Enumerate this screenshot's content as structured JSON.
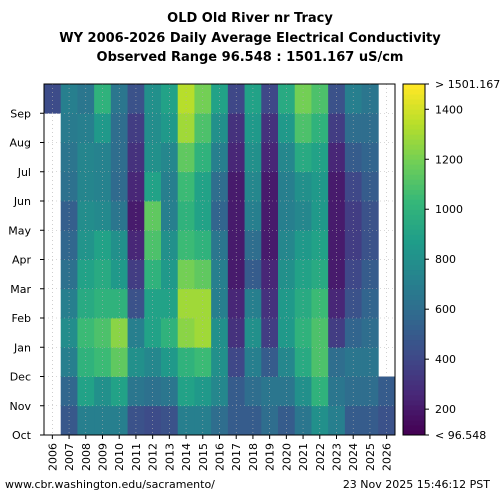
{
  "chart_data": {
    "type": "heatmap",
    "title": "OLD Old River nr Tracy",
    "subtitle": "WY 2006-2026 Daily Average Electrical Conductivity",
    "range_text": "Observed Range 96.548 : 1501.167 uS/cm",
    "x_tick_labels": [
      "2006",
      "2007",
      "2008",
      "2009",
      "2010",
      "2011",
      "2012",
      "2013",
      "2014",
      "2015",
      "2016",
      "2017",
      "2018",
      "2019",
      "2020",
      "2021",
      "2022",
      "2023",
      "2024",
      "2025",
      "2026"
    ],
    "y_tick_labels": [
      "Oct",
      "Nov",
      "Dec",
      "Jan",
      "Feb",
      "Mar",
      "Apr",
      "May",
      "Jun",
      "Jul",
      "Aug",
      "Sep"
    ],
    "colorbar": {
      "min": 96.548,
      "max": 1501.167,
      "ticks": [
        200,
        400,
        600,
        800,
        1000,
        1200,
        1400
      ],
      "tick_labels": [
        "200",
        "400",
        "600",
        "800",
        "1000",
        "1200",
        "1400"
      ],
      "top_label": "> 1501.167",
      "bottom_label": "< 96.548",
      "colormap": "viridis"
    },
    "monthly_mean_ec": {
      "note_months": [
        "Oct",
        "Nov",
        "Dec",
        "Jan",
        "Feb",
        "Mar",
        "Apr",
        "May",
        "Jun",
        "Jul",
        "Aug",
        "Sep"
      ],
      "2006": [
        null,
        null,
        null,
        null,
        null,
        null,
        null,
        null,
        null,
        null,
        null,
        420
      ],
      "2007": [
        480,
        560,
        700,
        780,
        700,
        620,
        560,
        520,
        620,
        640,
        680,
        700
      ],
      "2008": [
        700,
        900,
        1000,
        1050,
        950,
        900,
        820,
        780,
        740,
        740,
        700,
        650
      ],
      "2009": [
        700,
        800,
        1050,
        1100,
        1000,
        950,
        900,
        760,
        720,
        720,
        850,
        1000
      ],
      "2010": [
        700,
        900,
        1150,
        1250,
        1000,
        850,
        800,
        650,
        580,
        600,
        600,
        650
      ],
      "2011": [
        450,
        650,
        800,
        700,
        450,
        350,
        250,
        200,
        250,
        300,
        350,
        450
      ],
      "2012": [
        420,
        620,
        750,
        900,
        900,
        1000,
        1100,
        1150,
        900,
        800,
        780,
        800
      ],
      "2013": [
        450,
        650,
        850,
        1000,
        900,
        850,
        800,
        700,
        700,
        750,
        850,
        900
      ],
      "2014": [
        700,
        900,
        1000,
        1250,
        1300,
        1200,
        1050,
        1000,
        1050,
        1150,
        1300,
        1350
      ],
      "2015": [
        700,
        850,
        1050,
        1300,
        1300,
        1150,
        1000,
        900,
        900,
        1000,
        1100,
        1200
      ],
      "2016": [
        600,
        750,
        800,
        800,
        700,
        700,
        650,
        550,
        600,
        700,
        800,
        900
      ],
      "2017": [
        500,
        500,
        400,
        300,
        250,
        200,
        200,
        200,
        200,
        250,
        300,
        400
      ],
      "2018": [
        500,
        600,
        700,
        800,
        700,
        500,
        600,
        700,
        750,
        800,
        850,
        900
      ],
      "2019": [
        600,
        650,
        500,
        350,
        300,
        250,
        200,
        200,
        200,
        250,
        300,
        400
      ],
      "2020": [
        500,
        650,
        750,
        850,
        850,
        800,
        750,
        700,
        700,
        750,
        850,
        950
      ],
      "2021": [
        650,
        800,
        950,
        1000,
        950,
        900,
        850,
        750,
        800,
        950,
        1100,
        1200
      ],
      "2022": [
        800,
        1000,
        1100,
        1100,
        1050,
        950,
        900,
        850,
        850,
        900,
        1000,
        1100
      ],
      "2023": [
        700,
        650,
        600,
        350,
        250,
        200,
        200,
        200,
        200,
        250,
        350,
        450
      ],
      "2024": [
        500,
        600,
        650,
        550,
        450,
        400,
        350,
        350,
        400,
        500,
        600,
        700
      ],
      "2025": [
        500,
        600,
        650,
        600,
        550,
        500,
        450,
        450,
        500,
        550,
        600,
        650
      ],
      "2026": [
        450,
        500,
        null,
        null,
        null,
        null,
        null,
        null,
        null,
        null,
        null,
        null
      ]
    }
  },
  "footer": {
    "url": "www.cbr.washington.edu/sacramento/",
    "timestamp": "23 Nov 2025 15:46:12 PST"
  }
}
